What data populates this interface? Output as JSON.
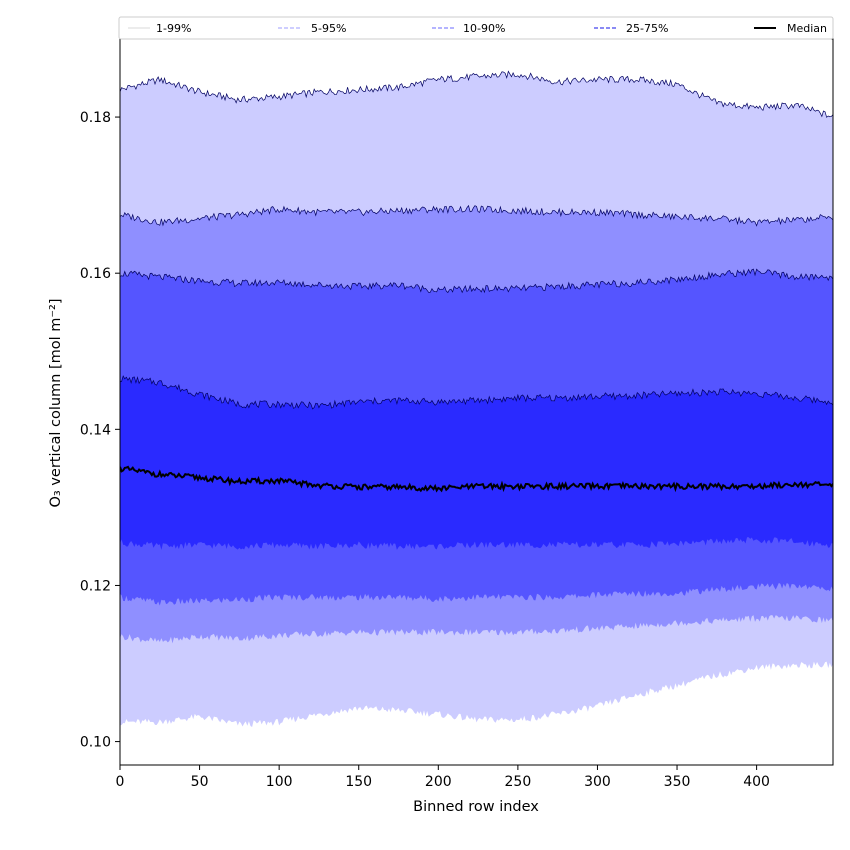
{
  "chart_data": {
    "type": "area",
    "xlabel": "Binned row index",
    "ylabel": "O₃ vertical column [mol m⁻²]",
    "xlim": [
      0,
      448
    ],
    "ylim": [
      0.097,
      0.19
    ],
    "xticks": [
      0,
      50,
      100,
      150,
      200,
      250,
      300,
      350,
      400
    ],
    "yticks": [
      0.1,
      0.12,
      0.14,
      0.16,
      0.18
    ],
    "ytick_labels": [
      "0.10",
      "0.12",
      "0.14",
      "0.16",
      "0.18"
    ],
    "grid": false,
    "legend_position": "top",
    "x": [
      0,
      25,
      50,
      75,
      100,
      125,
      150,
      175,
      200,
      225,
      250,
      275,
      300,
      325,
      350,
      375,
      400,
      425,
      448
    ],
    "bands": [
      {
        "name": "1-99%",
        "color": "#ccccff",
        "lower": [
          0.1025,
          0.1025,
          0.1032,
          0.1022,
          0.1025,
          0.1035,
          0.1043,
          0.104,
          0.1035,
          0.1028,
          0.1028,
          0.1035,
          0.1045,
          0.106,
          0.1072,
          0.1085,
          0.1095,
          0.1098,
          0.1098
        ],
        "upper": [
          0.1835,
          0.1848,
          0.1832,
          0.1822,
          0.1826,
          0.1832,
          0.1835,
          0.1838,
          0.1848,
          0.1852,
          0.1855,
          0.1845,
          0.1848,
          0.1848,
          0.1842,
          0.1818,
          0.1812,
          0.1815,
          0.18
        ]
      },
      {
        "name": "5-95%",
        "color": "#8f8fff",
        "lower": [
          0.1135,
          0.1128,
          0.1135,
          0.1132,
          0.1136,
          0.1138,
          0.114,
          0.114,
          0.114,
          0.114,
          0.114,
          0.1142,
          0.1145,
          0.1148,
          0.1152,
          0.1155,
          0.1158,
          0.1158,
          0.1155
        ],
        "upper": [
          0.1675,
          0.1665,
          0.167,
          0.1675,
          0.1682,
          0.1678,
          0.1678,
          0.168,
          0.1682,
          0.1682,
          0.168,
          0.1678,
          0.1678,
          0.1675,
          0.1672,
          0.167,
          0.1665,
          0.1668,
          0.1672
        ]
      },
      {
        "name": "10-90%",
        "color": "#5555ff",
        "lower": [
          0.1185,
          0.1178,
          0.118,
          0.1182,
          0.1185,
          0.1185,
          0.1185,
          0.1185,
          0.1183,
          0.1185,
          0.1185,
          0.1185,
          0.1188,
          0.119,
          0.119,
          0.1195,
          0.1198,
          0.12,
          0.1195
        ],
        "upper": [
          0.16,
          0.1595,
          0.159,
          0.1587,
          0.1588,
          0.1585,
          0.1583,
          0.1585,
          0.1578,
          0.158,
          0.158,
          0.1583,
          0.1585,
          0.1588,
          0.1592,
          0.1598,
          0.1602,
          0.1595,
          0.1595
        ]
      },
      {
        "name": "25-75%",
        "color": "#2a2aff",
        "lower": [
          0.1255,
          0.125,
          0.1252,
          0.125,
          0.1252,
          0.125,
          0.1252,
          0.125,
          0.125,
          0.1252,
          0.1252,
          0.1252,
          0.1252,
          0.1252,
          0.1254,
          0.1256,
          0.1258,
          0.1256,
          0.1252
        ],
        "upper": [
          0.1465,
          0.146,
          0.1445,
          0.1432,
          0.1432,
          0.143,
          0.1435,
          0.1437,
          0.1435,
          0.1437,
          0.144,
          0.144,
          0.1442,
          0.1443,
          0.1446,
          0.1448,
          0.1446,
          0.144,
          0.1435
        ]
      }
    ],
    "median": {
      "name": "Median",
      "color": "#000000",
      "values": [
        0.135,
        0.1342,
        0.1338,
        0.1333,
        0.1334,
        0.1328,
        0.1326,
        0.1326,
        0.1324,
        0.1327,
        0.1327,
        0.1327,
        0.1327,
        0.1327,
        0.1327,
        0.1327,
        0.1327,
        0.133,
        0.1328
      ]
    },
    "legend": [
      {
        "label": "1-99%",
        "color": "#e0e0e0",
        "style": "solid"
      },
      {
        "label": "5-95%",
        "color": "#b0b0ff",
        "style": "dashed"
      },
      {
        "label": "10-90%",
        "color": "#8888ff",
        "style": "dashed"
      },
      {
        "label": "25-75%",
        "color": "#4444ee",
        "style": "dashed"
      },
      {
        "label": "Median",
        "color": "#000000",
        "style": "solid"
      }
    ]
  }
}
